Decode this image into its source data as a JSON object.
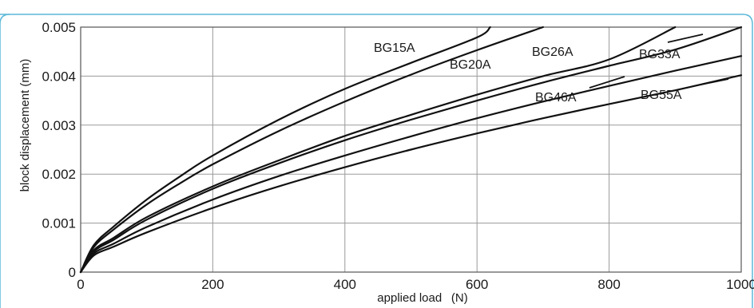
{
  "chart_data": {
    "type": "line",
    "title": "",
    "xlabel": "applied load  (N)",
    "ylabel": "block displacement (mm)",
    "xlim": [
      0,
      1000
    ],
    "ylim": [
      0,
      0.005
    ],
    "x_ticks": [
      "0",
      "200",
      "400",
      "600",
      "800",
      "1000"
    ],
    "y_ticks": [
      "0",
      "0.001",
      "0.002",
      "0.003",
      "0.004",
      "0.005"
    ],
    "grid": true,
    "legend": "inline labels",
    "colors": {
      "line": "#111111",
      "grid": "#9a9a9a",
      "frame_border": "#5bb8d8"
    },
    "series": [
      {
        "name": "BG15A",
        "x": [
          0,
          20,
          50,
          100,
          150,
          200,
          300,
          400,
          500,
          600,
          620
        ],
        "y": [
          0,
          0.00055,
          0.00093,
          0.00148,
          0.00195,
          0.00238,
          0.00311,
          0.00374,
          0.00427,
          0.00479,
          0.005
        ]
      },
      {
        "name": "BG20A",
        "x": [
          0,
          20,
          50,
          100,
          150,
          200,
          300,
          400,
          500,
          600,
          700
        ],
        "y": [
          0,
          0.00051,
          0.00087,
          0.00138,
          0.00181,
          0.0022,
          0.00288,
          0.00348,
          0.00403,
          0.00453,
          0.005
        ]
      },
      {
        "name": "BG26A",
        "x": [
          0,
          20,
          50,
          100,
          200,
          300,
          400,
          500,
          600,
          700,
          800,
          900
        ],
        "y": [
          0,
          0.00045,
          0.0007,
          0.00112,
          0.00175,
          0.00228,
          0.00278,
          0.00321,
          0.00362,
          0.004,
          0.00434,
          0.005
        ]
      },
      {
        "name": "BG33A",
        "x": [
          0,
          20,
          50,
          100,
          200,
          300,
          400,
          500,
          600,
          700,
          800,
          900,
          1000
        ],
        "y": [
          0,
          0.00042,
          0.00066,
          0.00107,
          0.0017,
          0.00222,
          0.00269,
          0.00311,
          0.0035,
          0.00387,
          0.00421,
          0.00454,
          0.005
        ]
      },
      {
        "name": "BG46A",
        "x": [
          0,
          20,
          50,
          100,
          200,
          300,
          400,
          500,
          600,
          700,
          800,
          900,
          1000
        ],
        "y": [
          0,
          0.00038,
          0.00058,
          0.00092,
          0.00148,
          0.00196,
          0.00238,
          0.00277,
          0.00314,
          0.00348,
          0.0038,
          0.00411,
          0.00441
        ]
      },
      {
        "name": "BG55A",
        "x": [
          0,
          20,
          50,
          100,
          200,
          300,
          400,
          500,
          600,
          700,
          800,
          900,
          1000
        ],
        "y": [
          0,
          0.00034,
          0.00052,
          0.00081,
          0.00131,
          0.00175,
          0.00214,
          0.0025,
          0.00283,
          0.00314,
          0.00343,
          0.00371,
          0.00402
        ]
      }
    ],
    "label_leaders": {
      "BG15A": false,
      "BG20A": false,
      "BG26A": false,
      "BG33A": true,
      "BG46A": true,
      "BG55A": true
    }
  }
}
